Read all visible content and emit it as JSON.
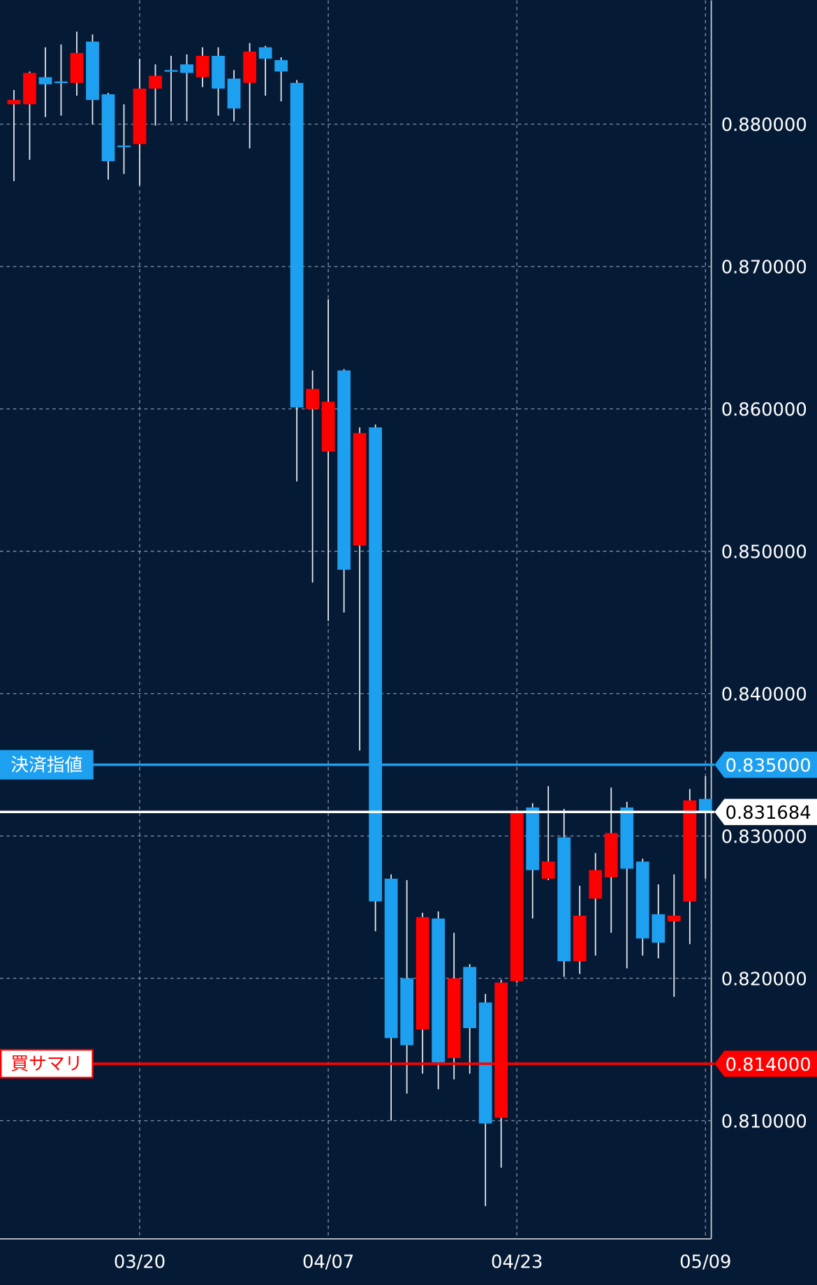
{
  "chart_data": {
    "type": "candlestick",
    "categories": [
      null,
      null,
      null,
      null,
      null,
      null,
      null,
      null,
      "03/20",
      null,
      null,
      null,
      null,
      null,
      null,
      null,
      null,
      null,
      null,
      null,
      "04/07",
      null,
      null,
      null,
      null,
      null,
      null,
      null,
      null,
      null,
      null,
      null,
      "04/23",
      null,
      null,
      null,
      null,
      null,
      null,
      null,
      null,
      null,
      null,
      null,
      "05/09"
    ],
    "open": [
      0.8814,
      0.8814,
      0.8833,
      0.883,
      0.8829,
      0.8858,
      0.8821,
      0.8785,
      0.8786,
      0.8825,
      0.8838,
      0.8842,
      0.8833,
      0.8848,
      0.8832,
      0.8829,
      0.8854,
      0.8845,
      0.8829,
      0.86,
      0.857,
      0.8627,
      0.8504,
      0.8587,
      0.827,
      0.82,
      0.8164,
      0.8242,
      0.8144,
      0.8208,
      0.8183,
      0.8102,
      0.8198,
      0.832,
      0.827,
      0.8299,
      0.8212,
      0.8256,
      0.8271,
      0.832,
      0.8282,
      0.8245,
      0.824,
      0.8254,
      0.8326
    ],
    "high": [
      0.8824,
      0.8837,
      0.8854,
      0.8856,
      0.8865,
      0.8863,
      0.8822,
      0.8814,
      0.8846,
      0.8842,
      0.8848,
      0.8849,
      0.8854,
      0.8854,
      0.8838,
      0.8857,
      0.8855,
      0.8847,
      0.8831,
      0.8627,
      0.8677,
      0.8628,
      0.8587,
      0.8589,
      0.8273,
      0.8269,
      0.8246,
      0.8247,
      0.8232,
      0.821,
      0.8189,
      0.8199,
      0.8318,
      0.8323,
      0.8335,
      0.8319,
      0.8265,
      0.8288,
      0.8334,
      0.8324,
      0.8284,
      0.8266,
      0.8273,
      0.8333,
      0.8342
    ],
    "low": [
      0.876,
      0.8775,
      0.8805,
      0.8806,
      0.882,
      0.88,
      0.8761,
      0.8765,
      0.8757,
      0.8799,
      0.8802,
      0.8802,
      0.8826,
      0.8806,
      0.8802,
      0.8783,
      0.882,
      0.8816,
      0.8549,
      0.8478,
      0.8451,
      0.8457,
      0.836,
      0.8233,
      0.81,
      0.8119,
      0.8133,
      0.8122,
      0.8129,
      0.8133,
      0.804,
      0.8067,
      0.8197,
      0.8242,
      0.8269,
      0.8201,
      0.8203,
      0.8216,
      0.8232,
      0.8207,
      0.8216,
      0.8214,
      0.8187,
      0.8224,
      0.827
    ],
    "close": [
      0.8817,
      0.8836,
      0.8828,
      0.8829,
      0.885,
      0.8817,
      0.8774,
      0.8784,
      0.8825,
      0.8834,
      0.8837,
      0.8836,
      0.8848,
      0.8825,
      0.8811,
      0.8851,
      0.8846,
      0.8837,
      0.8601,
      0.8614,
      0.8605,
      0.8487,
      0.8583,
      0.8254,
      0.8158,
      0.8153,
      0.8243,
      0.8141,
      0.82,
      0.8165,
      0.8098,
      0.8197,
      0.8316,
      0.8276,
      0.8282,
      0.8212,
      0.8244,
      0.8276,
      0.8302,
      0.8277,
      0.8228,
      0.8225,
      0.8244,
      0.8325,
      0.8317
    ],
    "up_color": "#ff0000",
    "down_color": "#1ea0f0",
    "ylim": [
      0.8017,
      0.8887
    ],
    "yticks": [
      {
        "value": 0.81,
        "label": "0.810000"
      },
      {
        "value": 0.82,
        "label": "0.820000"
      },
      {
        "value": 0.83,
        "label": "0.830000"
      },
      {
        "value": 0.84,
        "label": "0.840000"
      },
      {
        "value": 0.85,
        "label": "0.850000"
      },
      {
        "value": 0.86,
        "label": "0.860000"
      },
      {
        "value": 0.87,
        "label": "0.870000"
      },
      {
        "value": 0.88,
        "label": "0.880000"
      }
    ],
    "grid": true,
    "price_lines": [
      {
        "label": "決済指値",
        "value": 0.835,
        "value_label": "0.835000",
        "color": "#1ea0f0"
      },
      {
        "value": 0.831684,
        "value_label": "0.831684",
        "color": "#ffffff"
      },
      {
        "label": "買サマリ",
        "value": 0.814,
        "value_label": "0.814000",
        "color": "#ff0000"
      }
    ]
  }
}
